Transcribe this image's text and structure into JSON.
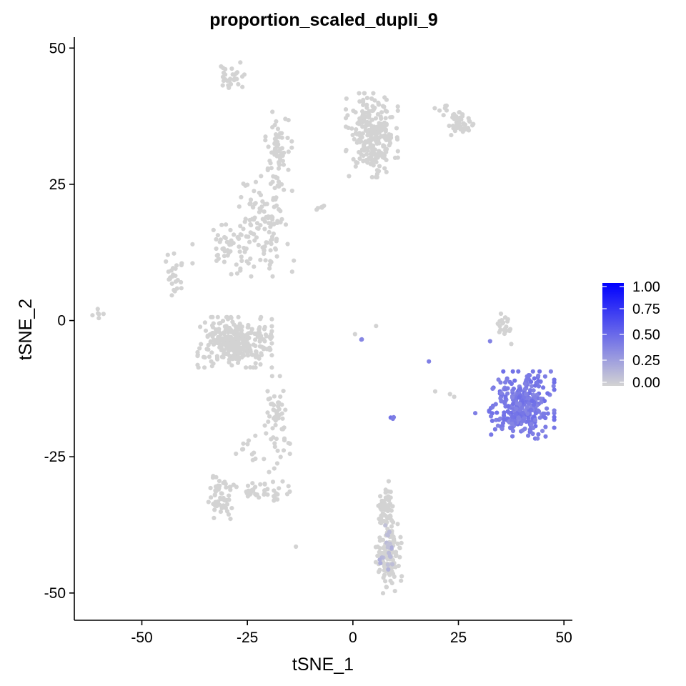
{
  "chart_data": {
    "type": "scatter",
    "title": "proportion_scaled_dupli_9",
    "xlabel": "tSNE_1",
    "ylabel": "tSNE_2",
    "xlim": [
      -66,
      52
    ],
    "ylim": [
      -55,
      52
    ],
    "x_ticks": [
      -50,
      -25,
      0,
      25,
      50
    ],
    "y_ticks": [
      -50,
      -25,
      0,
      25,
      50
    ],
    "grid": false,
    "legend": {
      "placement": "right",
      "type": "colorbar",
      "ticks": [
        "1.00",
        "0.75",
        "0.50",
        "0.25",
        "0.00"
      ],
      "range": [
        0,
        1
      ],
      "low_color": "#d3d3d3",
      "high_color": "#0000ff"
    },
    "clusters": [
      {
        "cx": -29,
        "cy": 44.5,
        "sx": 1.5,
        "sy": 1.3,
        "n": 30,
        "value": 0
      },
      {
        "cx": 4.5,
        "cy": 34,
        "sx": 2.8,
        "sy": 3.5,
        "n": 260,
        "value": 0
      },
      {
        "cx": 25,
        "cy": 36,
        "sx": 1.6,
        "sy": 1.0,
        "n": 45,
        "value": 0
      },
      {
        "cx": 21.5,
        "cy": 39,
        "sx": 1.2,
        "sy": 0.6,
        "n": 6,
        "value": 0
      },
      {
        "cx": -18,
        "cy": 31,
        "sx": 1.6,
        "sy": 3.5,
        "n": 60,
        "value": 0
      },
      {
        "cx": -21,
        "cy": 18,
        "sx": 3.0,
        "sy": 4.5,
        "n": 120,
        "value": 0
      },
      {
        "cx": -30,
        "cy": 14,
        "sx": 2.5,
        "sy": 2.5,
        "n": 45,
        "value": 0
      },
      {
        "cx": -8,
        "cy": 20.7,
        "sx": 0.6,
        "sy": 0.3,
        "n": 6,
        "value": 0
      },
      {
        "cx": -42.5,
        "cy": 8,
        "sx": 1.2,
        "sy": 2.2,
        "n": 25,
        "value": 0
      },
      {
        "cx": -59.5,
        "cy": 1,
        "sx": 1.0,
        "sy": 0.7,
        "n": 6,
        "value": 0
      },
      {
        "cx": -28,
        "cy": -4,
        "sx": 4.0,
        "sy": 2.1,
        "n": 340,
        "value": 0
      },
      {
        "cx": 36,
        "cy": -1,
        "sx": 0.9,
        "sy": 1.5,
        "n": 25,
        "value": 0
      },
      {
        "cx": -18,
        "cy": -19,
        "sx": 1.4,
        "sy": 4.0,
        "n": 55,
        "value": 0
      },
      {
        "cx": -24,
        "cy": -22,
        "sx": 2.0,
        "sy": 2.2,
        "n": 12,
        "value": 0
      },
      {
        "cx": -31,
        "cy": -32.5,
        "sx": 1.6,
        "sy": 1.8,
        "n": 55,
        "value": 0
      },
      {
        "cx": -22,
        "cy": -31.5,
        "sx": 3.2,
        "sy": 0.9,
        "n": 45,
        "value": 0
      },
      {
        "cx": 8,
        "cy": -35,
        "sx": 1.0,
        "sy": 2.5,
        "n": 60,
        "value": 0
      },
      {
        "cx": 8.5,
        "cy": -43,
        "sx": 1.4,
        "sy": 3.2,
        "n": 130,
        "value": 0
      },
      {
        "cx": 8,
        "cy": -42,
        "sx": 0.9,
        "sy": 2.0,
        "n": 20,
        "value": 0.12
      },
      {
        "cx": 40,
        "cy": -15.5,
        "sx": 3.5,
        "sy": 2.8,
        "n": 330,
        "value": 0.42
      },
      {
        "cx": 9.3,
        "cy": -17.8,
        "sx": 0.4,
        "sy": 0.4,
        "n": 3,
        "value": 0.45
      },
      {
        "cx": 2,
        "cy": -3.5,
        "sx": 0.2,
        "sy": 0.1,
        "n": 2,
        "value": 0.4
      }
    ],
    "singletons": [
      {
        "x": 18,
        "y": -7.5,
        "value": 0.4
      },
      {
        "x": 29,
        "y": -17,
        "value": 0.4
      },
      {
        "x": 32.5,
        "y": -3.8,
        "value": 0.38
      },
      {
        "x": 19.5,
        "y": -13,
        "value": 0
      },
      {
        "x": 24,
        "y": -14,
        "value": 0
      },
      {
        "x": 23,
        "y": -13.5,
        "value": 0
      },
      {
        "x": 0.5,
        "y": -2.5,
        "value": 0
      },
      {
        "x": 5.5,
        "y": -1,
        "value": 0
      },
      {
        "x": -13.5,
        "y": -41.5,
        "value": 0
      },
      {
        "x": -38,
        "y": 10.5,
        "value": 0
      },
      {
        "x": -38,
        "y": 14,
        "value": 0
      },
      {
        "x": -14,
        "y": 11,
        "value": 0
      },
      {
        "x": -16,
        "y": 37,
        "value": 0
      },
      {
        "x": -27,
        "y": -2.5,
        "value": 0
      }
    ]
  }
}
